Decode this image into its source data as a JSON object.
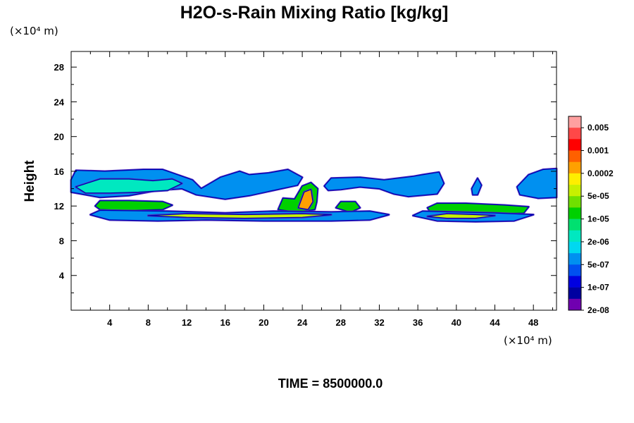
{
  "chart_data": {
    "type": "contour",
    "title": "H2O-s-Rain Mixing Ratio [kg/kg]",
    "x_unit_label": "(×10⁴ m)",
    "y_unit_label": "(×10⁴ m)",
    "ylabel": "Height",
    "xlabel": "",
    "xlim": [
      0,
      50.4
    ],
    "ylim": [
      0,
      29.8
    ],
    "x_ticks": [
      4,
      8,
      12,
      16,
      20,
      24,
      28,
      32,
      36,
      40,
      44,
      48
    ],
    "y_ticks": [
      4,
      8,
      12,
      16,
      20,
      24,
      28
    ],
    "grid": false,
    "footer": "TIME = 8500000.0",
    "colorbar": {
      "labels": [
        "0.005",
        "0.001",
        "0.0002",
        "5e-05",
        "1e-05",
        "2e-06",
        "5e-07",
        "1e-07",
        "2e-08"
      ],
      "colors": [
        "#ffa0a0",
        "#ff4848",
        "#ff0000",
        "#ff6000",
        "#ffa000",
        "#ffee00",
        "#c8f000",
        "#70e000",
        "#00d000",
        "#00e070",
        "#00e8c0",
        "#00d8f0",
        "#0090f0",
        "#0050f0",
        "#0000e0",
        "#0000a0",
        "#7000b0"
      ]
    },
    "regions": [
      {
        "name": "upper-band",
        "level": "5e-07",
        "polygon": [
          [
            0,
            15.0
          ],
          [
            0.5,
            16.1
          ],
          [
            3.5,
            16.0
          ],
          [
            7.5,
            16.2
          ],
          [
            9.5,
            16.2
          ],
          [
            12.6,
            15.0
          ],
          [
            13.5,
            14.0
          ],
          [
            15.5,
            15.3
          ],
          [
            17.5,
            16.0
          ],
          [
            18.5,
            15.6
          ],
          [
            20.5,
            15.8
          ],
          [
            22.5,
            16.2
          ],
          [
            24.0,
            15.3
          ],
          [
            23.5,
            14.4
          ],
          [
            21.0,
            13.8
          ],
          [
            18.5,
            13.2
          ],
          [
            16.0,
            12.8
          ],
          [
            13.0,
            13.3
          ],
          [
            11.5,
            14.0
          ],
          [
            9.0,
            13.8
          ],
          [
            6.0,
            13.2
          ],
          [
            3.0,
            13.0
          ],
          [
            0,
            13.6
          ]
        ]
      },
      {
        "name": "upper-band-core",
        "level": "2e-06",
        "polygon": [
          [
            0.5,
            14.2
          ],
          [
            3.0,
            15.1
          ],
          [
            6.0,
            15.1
          ],
          [
            8.5,
            14.9
          ],
          [
            10.5,
            15.1
          ],
          [
            11.5,
            14.6
          ],
          [
            10.0,
            13.8
          ],
          [
            7.0,
            13.6
          ],
          [
            4.0,
            13.5
          ],
          [
            1.5,
            13.5
          ]
        ]
      },
      {
        "name": "upper-band-east",
        "level": "5e-07",
        "polygon": [
          [
            26.3,
            14.3
          ],
          [
            27.0,
            15.2
          ],
          [
            30.0,
            15.3
          ],
          [
            32.5,
            15.0
          ],
          [
            34.0,
            15.2
          ],
          [
            35.5,
            15.4
          ],
          [
            36.5,
            15.6
          ],
          [
            38.2,
            15.9
          ],
          [
            38.7,
            14.6
          ],
          [
            38.0,
            13.4
          ],
          [
            35.0,
            13.1
          ],
          [
            33.5,
            13.4
          ],
          [
            32.0,
            14.0
          ],
          [
            30.0,
            14.2
          ],
          [
            28.0,
            13.9
          ],
          [
            26.7,
            13.8
          ]
        ]
      },
      {
        "name": "upper-band-far-east",
        "level": "5e-07",
        "polygon": [
          [
            46.3,
            14.2
          ],
          [
            47.5,
            15.6
          ],
          [
            49.0,
            16.2
          ],
          [
            50.4,
            16.3
          ],
          [
            50.4,
            13.0
          ],
          [
            48.5,
            12.9
          ],
          [
            46.6,
            13.3
          ]
        ]
      },
      {
        "name": "isolated-cell",
        "level": "5e-07",
        "polygon": [
          [
            41.6,
            14.0
          ],
          [
            42.2,
            15.2
          ],
          [
            42.6,
            14.4
          ],
          [
            42.2,
            13.3
          ],
          [
            41.7,
            13.3
          ]
        ]
      },
      {
        "name": "convective-cell",
        "level": "1e-05",
        "polygon": [
          [
            21.5,
            11.6
          ],
          [
            22.0,
            12.9
          ],
          [
            23.2,
            12.8
          ],
          [
            24.0,
            14.3
          ],
          [
            24.9,
            14.7
          ],
          [
            25.6,
            14.0
          ],
          [
            25.5,
            12.5
          ],
          [
            25.3,
            11.6
          ],
          [
            23.5,
            11.3
          ]
        ]
      },
      {
        "name": "convective-core",
        "level": "0.0002",
        "polygon": [
          [
            23.6,
            11.8
          ],
          [
            24.2,
            13.6
          ],
          [
            24.9,
            13.9
          ],
          [
            25.1,
            12.5
          ],
          [
            24.6,
            11.6
          ]
        ]
      },
      {
        "name": "mid-cluster-west",
        "level": "1e-05",
        "polygon": [
          [
            2.5,
            12.0
          ],
          [
            3.0,
            12.6
          ],
          [
            6.0,
            12.6
          ],
          [
            9.5,
            12.5
          ],
          [
            10.5,
            12.1
          ],
          [
            9.5,
            11.6
          ],
          [
            6.0,
            11.5
          ],
          [
            3.0,
            11.6
          ]
        ]
      },
      {
        "name": "mid-cluster-east",
        "level": "1e-05",
        "polygon": [
          [
            37.0,
            11.8
          ],
          [
            38.0,
            12.3
          ],
          [
            41.0,
            12.3
          ],
          [
            45.0,
            12.1
          ],
          [
            47.5,
            11.9
          ],
          [
            47.0,
            11.2
          ],
          [
            43.0,
            11.1
          ],
          [
            39.0,
            11.1
          ],
          [
            37.3,
            11.3
          ]
        ]
      },
      {
        "name": "small-cell",
        "level": "1e-05",
        "polygon": [
          [
            27.5,
            11.8
          ],
          [
            28.0,
            12.5
          ],
          [
            29.5,
            12.5
          ],
          [
            30.0,
            11.8
          ],
          [
            29.0,
            11.3
          ]
        ]
      },
      {
        "name": "lower-band-west",
        "level": "5e-07",
        "polygon": [
          [
            2.0,
            11.0
          ],
          [
            3.0,
            11.5
          ],
          [
            10.0,
            11.4
          ],
          [
            16.0,
            11.2
          ],
          [
            21.0,
            11.4
          ],
          [
            27.0,
            11.3
          ],
          [
            31.0,
            11.4
          ],
          [
            33.0,
            11.0
          ],
          [
            31.0,
            10.4
          ],
          [
            27.0,
            10.3
          ],
          [
            20.0,
            10.3
          ],
          [
            14.0,
            10.4
          ],
          [
            9.0,
            10.3
          ],
          [
            4.0,
            10.4
          ]
        ]
      },
      {
        "name": "lower-band-west-core",
        "level": "5e-05",
        "polygon": [
          [
            8.0,
            10.9
          ],
          [
            12.0,
            11.1
          ],
          [
            18.0,
            11.0
          ],
          [
            24.0,
            11.1
          ],
          [
            27.0,
            11.0
          ],
          [
            24.0,
            10.7
          ],
          [
            18.0,
            10.6
          ],
          [
            12.0,
            10.7
          ]
        ]
      },
      {
        "name": "lower-band-east",
        "level": "5e-07",
        "polygon": [
          [
            35.5,
            10.9
          ],
          [
            36.5,
            11.4
          ],
          [
            40.0,
            11.3
          ],
          [
            44.0,
            11.2
          ],
          [
            48.0,
            11.0
          ],
          [
            46.0,
            10.3
          ],
          [
            42.0,
            10.2
          ],
          [
            38.0,
            10.3
          ]
        ]
      },
      {
        "name": "lower-band-east-core",
        "level": "5e-05",
        "polygon": [
          [
            37.0,
            10.8
          ],
          [
            39.0,
            11.1
          ],
          [
            42.0,
            11.0
          ],
          [
            44.0,
            10.9
          ],
          [
            42.0,
            10.6
          ],
          [
            39.0,
            10.6
          ]
        ]
      }
    ]
  }
}
